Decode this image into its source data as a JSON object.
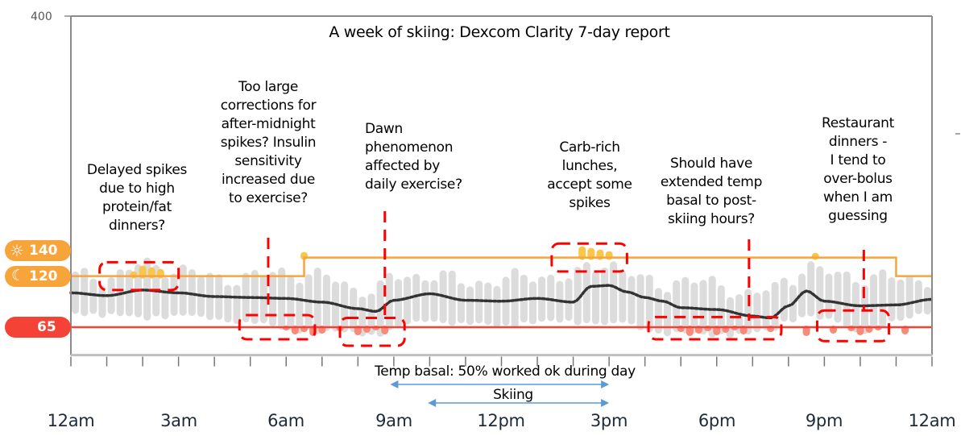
{
  "chart_data": {
    "type": "bar",
    "title": "A week of skiing: Dexcom Clarity 7-day report",
    "xlabel": "",
    "ylabel": "",
    "ylim": [
      35,
      400
    ],
    "x_hours_range": [
      0,
      24
    ],
    "x_tick_labels": [
      "12am",
      "3am",
      "6am",
      "9am",
      "12pm",
      "3pm",
      "6pm",
      "9pm",
      "12am"
    ],
    "y_tick_labels": [
      "400"
    ],
    "thresholds": {
      "low": {
        "value": 65,
        "label": "65",
        "color": "#f44336"
      },
      "high_day": {
        "value": 140,
        "label": "140",
        "icon": "sun-icon",
        "color": "#f7a43b"
      },
      "high_night": {
        "value": 120,
        "label": "120",
        "icon": "moon-icon",
        "color": "#f7a43b"
      }
    },
    "high_line_steps": [
      {
        "from_hour": 0,
        "to_hour": 6.5,
        "value": 120
      },
      {
        "from_hour": 6.5,
        "to_hour": 23,
        "value": 140
      },
      {
        "from_hour": 23,
        "to_hour": 24,
        "value": 120
      }
    ],
    "median_series": {
      "name": "Median glucose",
      "interval_minutes": 15,
      "hours": [
        0,
        1,
        2,
        3,
        4,
        5,
        6,
        7,
        8,
        8.5,
        9,
        10,
        11,
        12,
        13,
        14,
        14.5,
        15,
        15.5,
        16,
        16.5,
        17,
        18,
        19,
        19.5,
        20,
        20.5,
        21,
        22,
        23,
        24
      ],
      "values": [
        102,
        99,
        105,
        102,
        98,
        97,
        96,
        92,
        85,
        82,
        94,
        101,
        94,
        93,
        96,
        92,
        109,
        110,
        103,
        97,
        93,
        86,
        84,
        77,
        75,
        88,
        104,
        93,
        88,
        89,
        95
      ]
    },
    "range_bars": {
      "name": "Percentile range",
      "interval_minutes": 15,
      "hours": [
        0,
        1,
        2,
        3,
        4,
        5,
        6,
        7,
        8,
        8.5,
        9,
        10,
        11,
        12,
        13,
        14,
        14.5,
        15,
        15.5,
        16,
        16.5,
        17,
        18,
        19,
        19.5,
        20,
        20.5,
        21,
        22,
        23,
        24
      ],
      "low": [
        82,
        80,
        76,
        80,
        75,
        72,
        64,
        62,
        60,
        58,
        66,
        74,
        70,
        68,
        72,
        72,
        72,
        70,
        70,
        64,
        60,
        60,
        58,
        60,
        62,
        74,
        80,
        75,
        62,
        72,
        84
      ],
      "high": [
        120,
        120,
        132,
        128,
        118,
        120,
        125,
        120,
        108,
        104,
        120,
        122,
        114,
        116,
        122,
        118,
        132,
        136,
        124,
        114,
        112,
        116,
        112,
        100,
        106,
        118,
        132,
        124,
        120,
        118,
        118
      ]
    },
    "spike_dots": {
      "high_color": "#f8c64b",
      "low_color": "#f88a7c",
      "high_hours": [
        1.75,
        2.0,
        2.25,
        2.5,
        6.5,
        14.25,
        14.5,
        14.75,
        15.0,
        20.75
      ],
      "low_hours": [
        6.0,
        6.25,
        6.5,
        6.75,
        7.0,
        7.5,
        8.0,
        8.25,
        8.5,
        8.75,
        17.0,
        17.25,
        17.5,
        17.75,
        18.0,
        18.25,
        18.5,
        18.75,
        19.5,
        20.5,
        21.25,
        21.75,
        22.0,
        22.25,
        22.5,
        23.25
      ]
    },
    "annotations": [
      {
        "text": "Delayed spikes\ndue to high\nprotein/fat\ndinners?",
        "box_hours": [
          0.8,
          3.0
        ],
        "box_values": [
          105,
          135
        ]
      },
      {
        "text": "Too large\ncorrections for\nafter-midnight\nspikes? Insulin\nsensitivity\nincreased due\nto exercise?",
        "box_hours": [
          4.7,
          6.8
        ],
        "box_values": [
          52,
          78
        ]
      },
      {
        "text": "Dawn\nphenomenon\naffected by\ndaily exercise?",
        "box_hours": [
          7.5,
          9.3
        ],
        "box_values": [
          45,
          75
        ]
      },
      {
        "text": "Carb-rich\nlunches,\naccept some\nspikes",
        "box_hours": [
          13.4,
          15.5
        ],
        "box_values": [
          125,
          155
        ]
      },
      {
        "text": "Should have\nextended temp\nbasal to post-\nskiing hours?",
        "box_hours": [
          16.1,
          19.8
        ],
        "box_values": [
          52,
          76
        ]
      },
      {
        "text": "Restaurant\ndinners -\nI tend to\nover-bolus\nwhen I am\nguessing",
        "box_hours": [
          20.8,
          22.8
        ],
        "box_values": [
          50,
          83
        ]
      }
    ],
    "range_arrows": [
      {
        "label": "Temp basal: 50% worked ok during day",
        "from_hour": 8.9,
        "to_hour": 15
      },
      {
        "label": "Skiing",
        "from_hour": 9.95,
        "to_hour": 15
      }
    ]
  },
  "colors": {
    "annotation_box": "#ff0000",
    "arrow": "#5b9bd5",
    "range_bar": "#dcdcdc",
    "median": "#333333"
  }
}
